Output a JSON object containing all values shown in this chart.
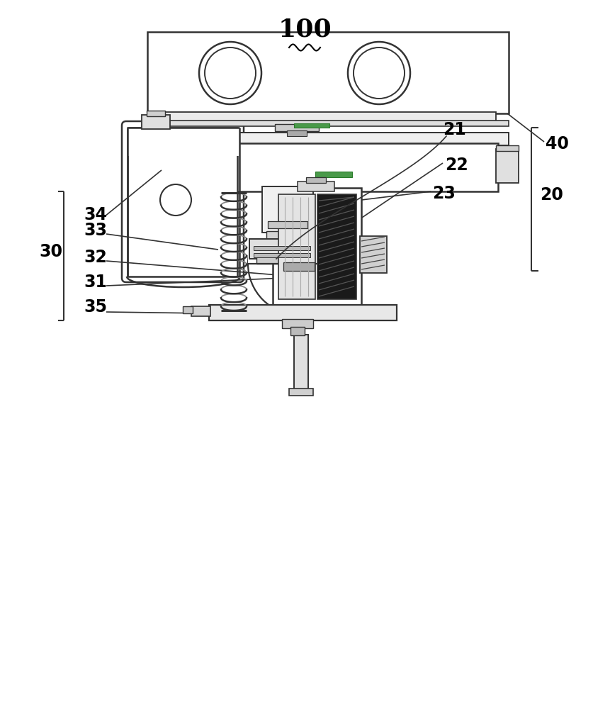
{
  "bg_color": "#ffffff",
  "line_color": "#333333",
  "light_gray": "#c8c8c8",
  "mid_gray": "#888888",
  "dark_gray": "#444444",
  "green_color": "#4a9a4a",
  "hatch_color": "#222222"
}
